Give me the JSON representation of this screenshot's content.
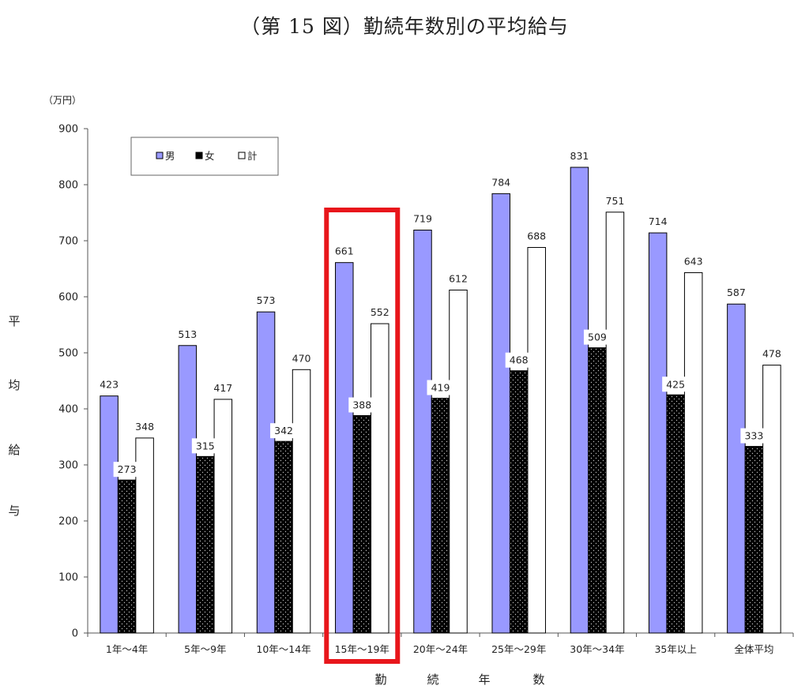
{
  "title": "（第 15 図）勤続年数別の平均給与",
  "chart_data": {
    "type": "bar",
    "unit_label": "（万円）",
    "ylabel_chars": [
      "平",
      "均",
      "給",
      "与"
    ],
    "xlabel_chars": [
      "勤",
      "続",
      "年",
      "数"
    ],
    "ylim": [
      0,
      900
    ],
    "yticks": [
      0,
      100,
      200,
      300,
      400,
      500,
      600,
      700,
      800,
      900
    ],
    "grid": false,
    "legend_position": "top-left",
    "categories": [
      "1年～4年",
      "5年～9年",
      "10年～14年",
      "15年～19年",
      "20年～24年",
      "25年～29年",
      "30年～34年",
      "35年以上",
      "全体平均"
    ],
    "series": [
      {
        "name": "男",
        "color": "#9999ff",
        "values": [
          423,
          513,
          573,
          661,
          719,
          784,
          831,
          714,
          587
        ]
      },
      {
        "name": "女",
        "color": "#000000",
        "values": [
          273,
          315,
          342,
          388,
          419,
          468,
          509,
          425,
          333
        ]
      },
      {
        "name": "計",
        "color": "#ffffff",
        "values": [
          348,
          417,
          470,
          552,
          612,
          688,
          751,
          643,
          478
        ]
      }
    ],
    "highlight": {
      "category": "15年～19年",
      "color": "#e8161b"
    }
  }
}
